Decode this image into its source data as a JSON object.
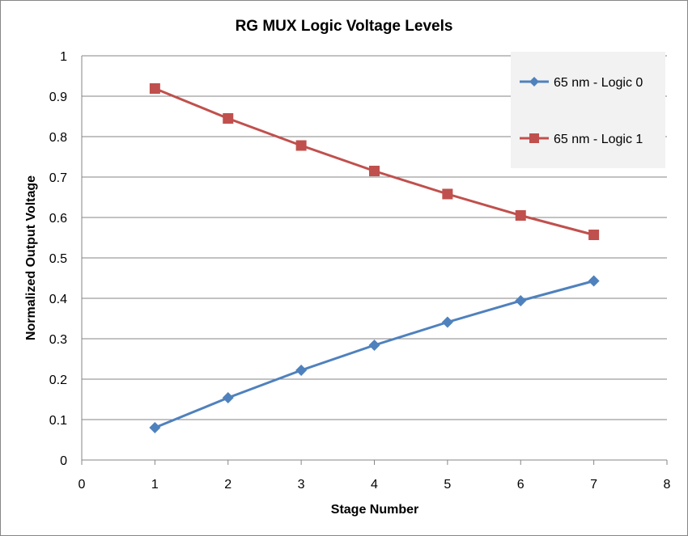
{
  "chart_data": {
    "type": "line",
    "title": "RG  MUX Logic Voltage Levels",
    "xlabel": "Stage Number",
    "ylabel": "Normalized Output Voltage",
    "xlim": [
      0,
      8
    ],
    "ylim": [
      0,
      1
    ],
    "xticks": [
      0,
      1,
      2,
      3,
      4,
      5,
      6,
      7,
      8
    ],
    "yticks": [
      0,
      0.1,
      0.2,
      0.3,
      0.4,
      0.5,
      0.6,
      0.7,
      0.8,
      0.9,
      1
    ],
    "grid": "horizontal",
    "legend_position": "top-right",
    "x": [
      1,
      2,
      3,
      4,
      5,
      6,
      7
    ],
    "series": [
      {
        "name": "65 nm - Logic 0",
        "color": "#4F81BD",
        "marker": "diamond",
        "values": [
          0.08,
          0.154,
          0.222,
          0.284,
          0.341,
          0.394,
          0.443
        ]
      },
      {
        "name": "65 nm - Logic 1",
        "color": "#C0504D",
        "marker": "square",
        "values": [
          0.919,
          0.845,
          0.778,
          0.715,
          0.658,
          0.605,
          0.557
        ]
      }
    ]
  }
}
